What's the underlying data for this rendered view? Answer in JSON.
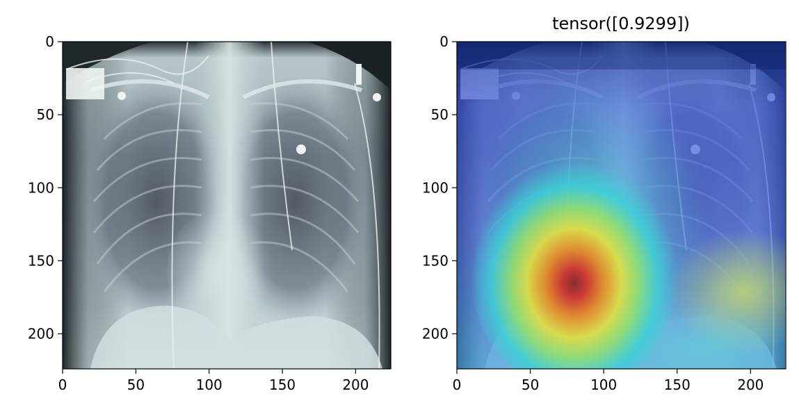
{
  "figure": {
    "panels": [
      {
        "id": "left",
        "image": "grayscale chest x-ray (bone colormap)",
        "title": "",
        "xticks": [
          0,
          50,
          100,
          150,
          200
        ],
        "yticks": [
          0,
          50,
          100,
          150,
          200
        ],
        "xlim": [
          0,
          224
        ],
        "ylim_inverted": [
          224,
          0
        ]
      },
      {
        "id": "right",
        "image": "chest x-ray with Grad-CAM jet heatmap overlay",
        "title": "tensor([0.9299])",
        "xticks": [
          0,
          50,
          100,
          150,
          200
        ],
        "yticks": [
          0,
          50,
          100,
          150,
          200
        ],
        "xlim": [
          0,
          224
        ],
        "ylim_inverted": [
          224,
          0
        ],
        "heatmap_peak": {
          "x": 80,
          "y": 175
        }
      }
    ]
  }
}
